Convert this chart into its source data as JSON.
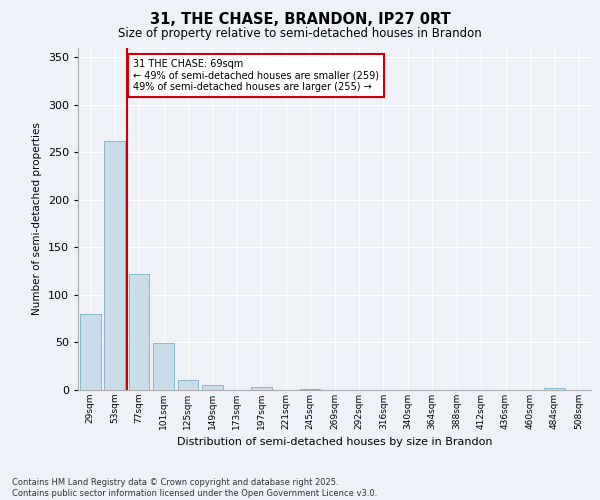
{
  "title": "31, THE CHASE, BRANDON, IP27 0RT",
  "subtitle": "Size of property relative to semi-detached houses in Brandon",
  "xlabel": "Distribution of semi-detached houses by size in Brandon",
  "ylabel": "Number of semi-detached properties",
  "categories": [
    "29sqm",
    "53sqm",
    "77sqm",
    "101sqm",
    "125sqm",
    "149sqm",
    "173sqm",
    "197sqm",
    "221sqm",
    "245sqm",
    "269sqm",
    "292sqm",
    "316sqm",
    "340sqm",
    "364sqm",
    "388sqm",
    "412sqm",
    "436sqm",
    "460sqm",
    "484sqm",
    "508sqm"
  ],
  "values": [
    80,
    262,
    122,
    49,
    11,
    5,
    0,
    3,
    0,
    1,
    0,
    0,
    0,
    0,
    0,
    0,
    0,
    0,
    0,
    2,
    0
  ],
  "bar_color": "#c9dcea",
  "bar_edge_color": "#7aaec8",
  "vline_x": 1.5,
  "vline_color": "#cc0000",
  "annotation_text": "31 THE CHASE: 69sqm\n← 49% of semi-detached houses are smaller (259)\n49% of semi-detached houses are larger (255) →",
  "annotation_box_color": "#cc0000",
  "ylim": [
    0,
    360
  ],
  "yticks": [
    0,
    50,
    100,
    150,
    200,
    250,
    300,
    350
  ],
  "footer": "Contains HM Land Registry data © Crown copyright and database right 2025.\nContains public sector information licensed under the Open Government Licence v3.0.",
  "background_color": "#eef2f8",
  "grid_color": "#ffffff"
}
